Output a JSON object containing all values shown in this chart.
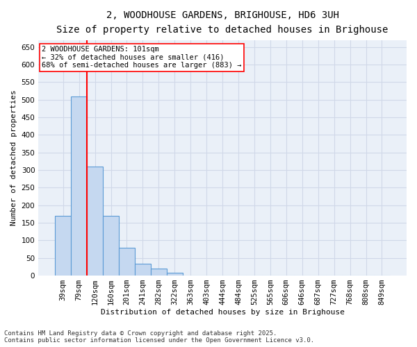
{
  "title_line1": "2, WOODHOUSE GARDENS, BRIGHOUSE, HD6 3UH",
  "title_line2": "Size of property relative to detached houses in Brighouse",
  "xlabel": "Distribution of detached houses by size in Brighouse",
  "ylabel": "Number of detached properties",
  "categories": [
    "39sqm",
    "79sqm",
    "120sqm",
    "160sqm",
    "201sqm",
    "241sqm",
    "282sqm",
    "322sqm",
    "363sqm",
    "403sqm",
    "444sqm",
    "484sqm",
    "525sqm",
    "565sqm",
    "606sqm",
    "646sqm",
    "687sqm",
    "727sqm",
    "768sqm",
    "808sqm",
    "849sqm"
  ],
  "values": [
    170,
    510,
    310,
    170,
    80,
    33,
    20,
    8,
    0,
    0,
    0,
    0,
    0,
    0,
    0,
    0,
    0,
    0,
    0,
    0,
    0
  ],
  "bar_color": "#c5d8f0",
  "bar_edge_color": "#5b9bd5",
  "bar_edge_width": 0.8,
  "vline_x_index": 1.5,
  "vline_color": "red",
  "vline_linewidth": 1.5,
  "annotation_text": "2 WOODHOUSE GARDENS: 101sqm\n← 32% of detached houses are smaller (416)\n68% of semi-detached houses are larger (883) →",
  "annotation_fontsize": 7.5,
  "annotation_box_color": "white",
  "annotation_box_edgecolor": "red",
  "ylim": [
    0,
    670
  ],
  "yticks": [
    0,
    50,
    100,
    150,
    200,
    250,
    300,
    350,
    400,
    450,
    500,
    550,
    600,
    650
  ],
  "grid_color": "#d0d8e8",
  "background_color": "#eaf0f8",
  "footer_line1": "Contains HM Land Registry data © Crown copyright and database right 2025.",
  "footer_line2": "Contains public sector information licensed under the Open Government Licence v3.0.",
  "footer_fontsize": 6.5,
  "title_fontsize1": 10,
  "title_fontsize2": 9,
  "ylabel_fontsize": 8,
  "xlabel_fontsize": 8,
  "tick_fontsize": 7.5
}
